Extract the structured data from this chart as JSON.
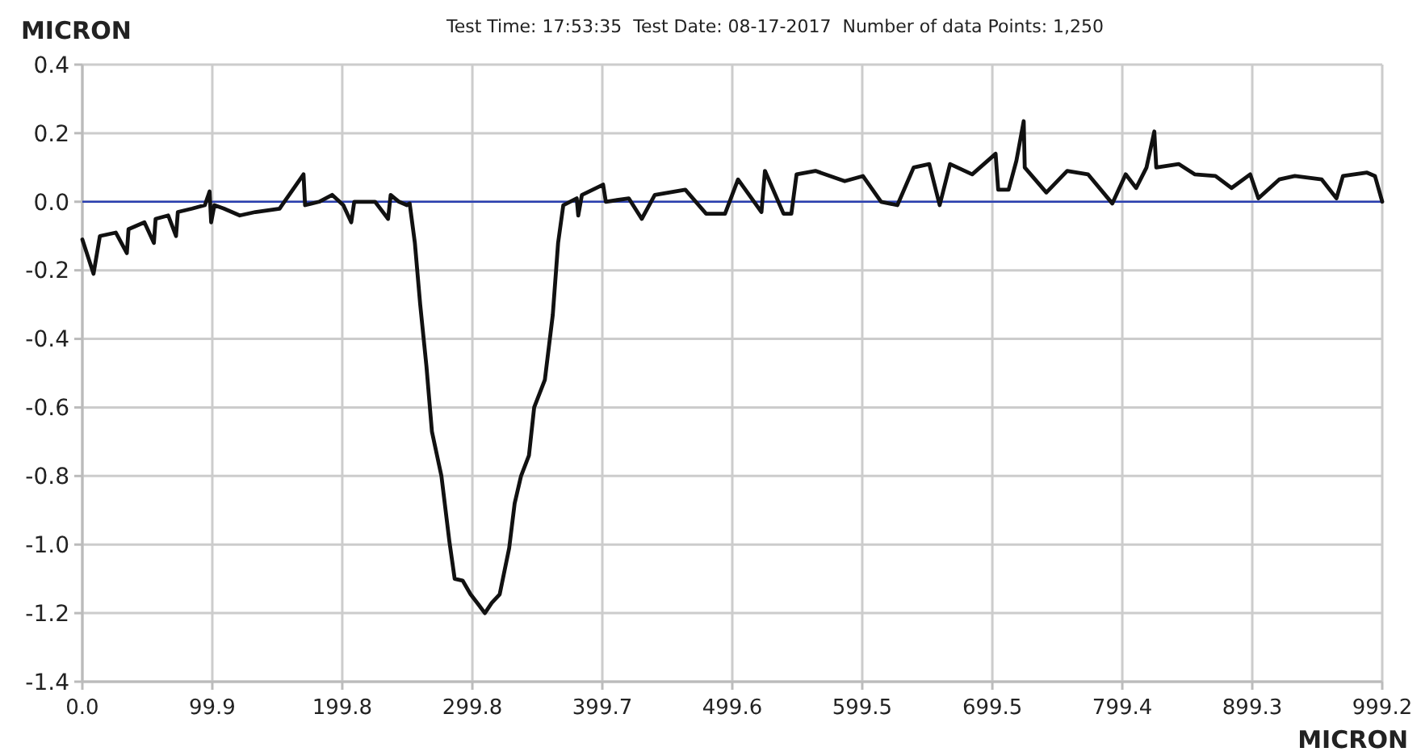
{
  "chart_data": {
    "type": "line",
    "title": "Test Time: 17:53:35  Test Date: 08-17-2017  Number of data Points: 1,250",
    "xlabel": "MICRON",
    "ylabel": "MICRON",
    "series": [
      {
        "color": "#111111",
        "x": [
          0,
          8.6,
          13.5,
          25.7,
          34.2,
          35.5,
          47.7,
          55,
          56.3,
          66,
          72,
          73.4,
          84.4,
          94.2,
          97.8,
          99,
          101.5,
          108.8,
          121,
          133,
          151.6,
          170,
          171.2,
          182,
          192,
          200.6,
          206.7,
          209,
          225,
          235,
          237,
          243.4,
          249.5,
          251.6,
          255.6,
          259.7,
          264.5,
          268.7,
          276,
          282.1,
          286.2,
          292.3,
          298.4,
          304.5,
          309.4,
          314.7,
          320.8,
          328.1,
          332.3,
          337.2,
          343.3,
          347.3,
          355.5,
          361.6,
          365.7,
          369.7,
          380,
          381.2,
          384,
          400.3,
          402.4,
          420,
          430,
          440,
          463.5,
          479.5,
          494,
          504,
          522,
          524.7,
          539,
          545,
          549,
          563.5,
          586,
          600,
          614,
          626.5,
          639,
          651,
          659,
          667,
          684,
          702,
          704,
          712,
          718,
          723.6,
          724.4,
          741,
          757,
          773,
          791.7,
          802,
          810,
          818,
          824,
          825.5,
          842.7,
          855,
          871,
          883.4,
          897.7,
          904,
          920,
          932,
          952.7,
          964,
          969,
          987.5,
          993.6,
          999.2
        ],
        "values": [
          -0.11,
          -0.21,
          -0.1,
          -0.09,
          -0.15,
          -0.08,
          -0.06,
          -0.12,
          -0.05,
          -0.04,
          -0.1,
          -0.03,
          -0.02,
          -0.01,
          0.03,
          -0.06,
          -0.01,
          -0.02,
          -0.04,
          -0.03,
          -0.02,
          0.08,
          -0.01,
          0.0,
          0.02,
          -0.01,
          -0.06,
          0.0,
          0.0,
          -0.05,
          0.02,
          0.0,
          -0.01,
          -0.005,
          -0.12,
          -0.3,
          -0.48,
          -0.67,
          -0.8,
          -0.99,
          -1.1,
          -1.105,
          -1.145,
          -1.175,
          -1.2,
          -1.17,
          -1.145,
          -1.01,
          -0.88,
          -0.8,
          -0.74,
          -0.6,
          -0.52,
          -0.33,
          -0.12,
          -0.01,
          0.01,
          -0.04,
          0.02,
          0.05,
          0.0,
          0.01,
          -0.05,
          0.02,
          0.035,
          -0.035,
          -0.035,
          0.065,
          -0.03,
          0.09,
          -0.035,
          -0.035,
          0.08,
          0.09,
          0.06,
          0.075,
          0.0,
          -0.01,
          0.1,
          0.11,
          -0.01,
          0.11,
          0.08,
          0.14,
          0.035,
          0.035,
          0.12,
          0.235,
          0.1,
          0.027,
          0.09,
          0.08,
          -0.005,
          0.08,
          0.04,
          0.1,
          0.205,
          0.1,
          0.11,
          0.08,
          0.075,
          0.04,
          0.08,
          0.01,
          0.065,
          0.075,
          0.065,
          0.01,
          0.075,
          0.085,
          0.075,
          0.0
        ]
      }
    ],
    "xlim": [
      0,
      999.2
    ],
    "xticks": [
      {
        "value": 0,
        "label": "0.0"
      },
      99.9,
      199.8,
      299.8,
      399.7,
      499.6,
      599.5,
      699.5,
      799.4,
      899.3,
      999.2
    ],
    "ylim": [
      -1.4,
      0.4
    ],
    "yticks": [
      -1.4,
      -1.2,
      {
        "value": -1,
        "label": "-1.0"
      },
      -0.8,
      -0.6,
      -0.4,
      -0.2,
      {
        "value": 0,
        "label": "0.0"
      },
      0.2,
      0.4
    ],
    "ref_lines": [
      {
        "axis": "y",
        "value": 0,
        "color": "#2a3fb0"
      }
    ],
    "grid": true,
    "marker": "none",
    "line_style": "solid"
  }
}
